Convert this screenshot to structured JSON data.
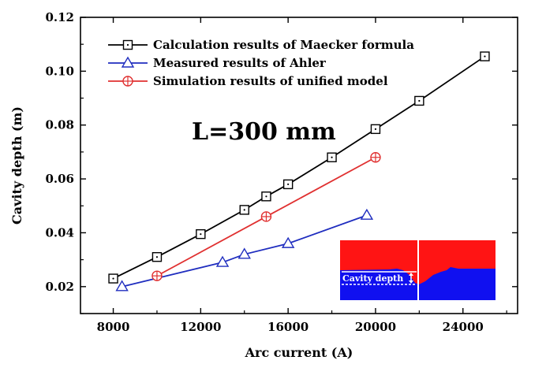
{
  "chart_data": {
    "type": "line",
    "title": "",
    "xlabel": "Arc current (A)",
    "ylabel": "Cavity depth (m)",
    "xlim": [
      6500,
      26500
    ],
    "ylim": [
      0.01,
      0.12
    ],
    "xticks": [
      8000,
      12000,
      16000,
      20000,
      24000
    ],
    "xtick_labels": [
      "8000",
      "12000",
      "16000",
      "20000",
      "24000"
    ],
    "yticks": [
      0.02,
      0.04,
      0.06,
      0.08,
      0.1,
      0.12
    ],
    "ytick_labels": [
      "0.02",
      "0.04",
      "0.06",
      "0.08",
      "0.10",
      "0.12"
    ],
    "grid": false,
    "legend_position": "top-left",
    "series": [
      {
        "name": "Calculation results of Maecker formula",
        "color": "#000000",
        "marker": "square",
        "x": [
          8000,
          10000,
          12000,
          14000,
          15000,
          16000,
          18000,
          20000,
          22000,
          25000
        ],
        "y": [
          0.023,
          0.031,
          0.0395,
          0.0485,
          0.0535,
          0.058,
          0.068,
          0.0785,
          0.089,
          0.1055
        ]
      },
      {
        "name": "Measured results of Ahler",
        "color": "#1f2dbf",
        "marker": "triangle",
        "x": [
          8400,
          13000,
          14000,
          16000,
          19600
        ],
        "y": [
          0.02,
          0.029,
          0.032,
          0.036,
          0.0465
        ]
      },
      {
        "name": "Simulation results of unified model",
        "color": "#e03030",
        "marker": "circle-plus",
        "x": [
          10000,
          15000,
          20000
        ],
        "y": [
          0.024,
          0.046,
          0.068
        ]
      }
    ],
    "annotations": [
      {
        "text": "L=300 mm"
      }
    ],
    "inset": {
      "label": "Cavity depth",
      "top_color": "#ff1414",
      "bottom_color": "#1010f0"
    }
  }
}
